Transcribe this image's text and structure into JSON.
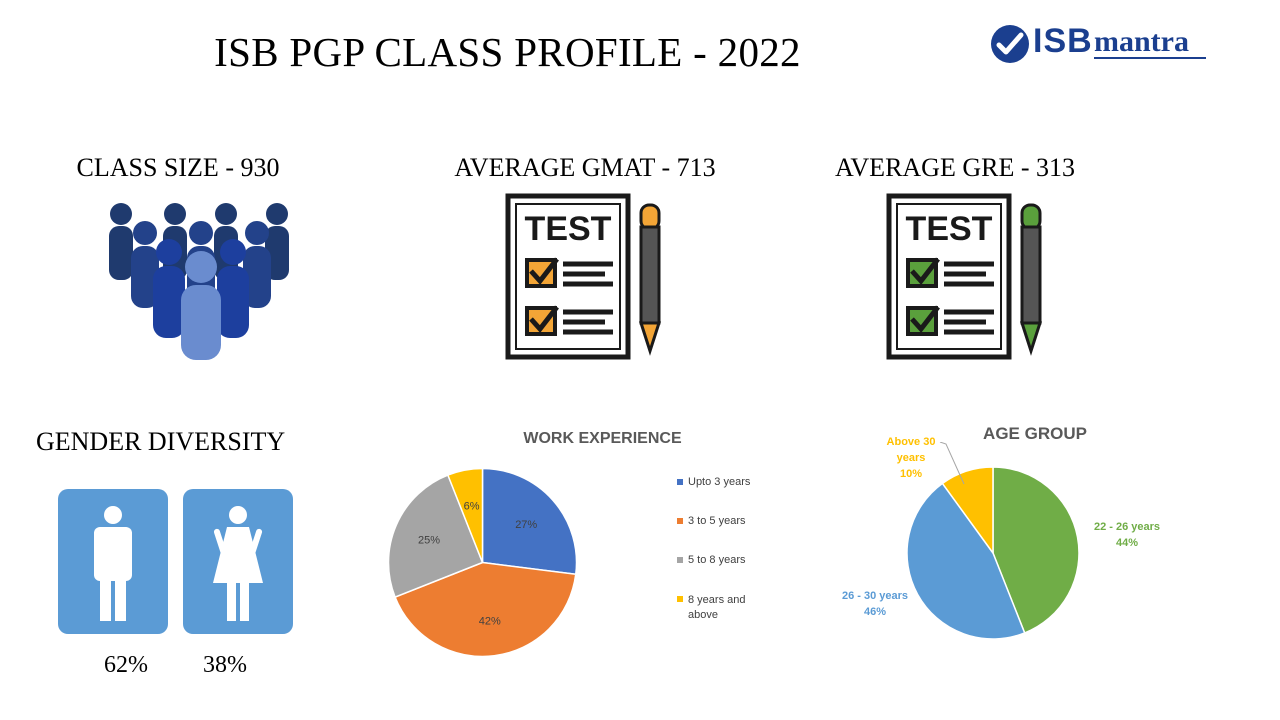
{
  "header": {
    "title": "ISB PGP CLASS PROFILE - 2022",
    "logo_isb": "ISB",
    "logo_mantra": "mantra"
  },
  "stats": {
    "class_size": "CLASS SIZE - 930",
    "gmat": "AVERAGE GMAT - 713",
    "gre": "AVERAGE GRE - 313",
    "test_word": "TEST"
  },
  "icons": {
    "class_size": "people-group-icon",
    "gmat": "test-sheet-icon",
    "gre": "test-sheet-icon",
    "male": "male-icon",
    "female": "female-icon",
    "gmat_accent": "#f3a536",
    "gre_accent": "#5aa03c"
  },
  "gender": {
    "heading": "GENDER DIVERSITY",
    "male_pct": "62%",
    "female_pct": "38%",
    "male_value": 62,
    "female_value": 38,
    "tile_color": "#5b9bd5"
  },
  "chart_data": [
    {
      "type": "pie",
      "title": "WORK EXPERIENCE",
      "categories": [
        "Upto 3 years",
        "3 to 5 years",
        "5 to 8 years",
        "8 years and above"
      ],
      "values": [
        27,
        42,
        25,
        6
      ],
      "labels": [
        "27%",
        "42%",
        "25%",
        "6%"
      ],
      "colors": [
        "#4472c4",
        "#ed7d31",
        "#a5a5a5",
        "#ffc000"
      ],
      "legend": "right"
    },
    {
      "type": "pie",
      "title": "AGE GROUP",
      "categories": [
        "22 - 26 years",
        "26 - 30 years",
        "Above 30 years"
      ],
      "values": [
        44,
        46,
        10
      ],
      "labels": [
        "44%",
        "46%",
        "10%"
      ],
      "colors": [
        "#70ad47",
        "#5b9bd5",
        "#ffc000"
      ],
      "legend": "none"
    }
  ]
}
